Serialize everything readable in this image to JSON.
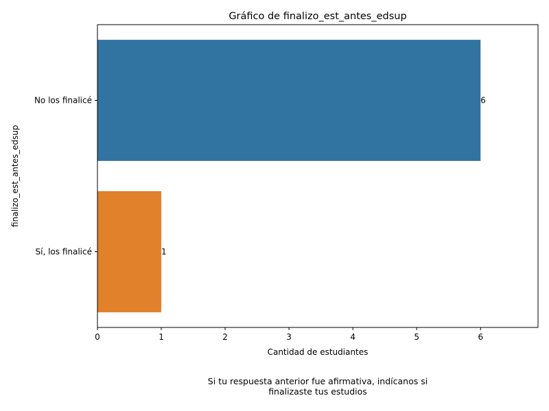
{
  "chart_data": {
    "type": "bar",
    "orientation": "horizontal",
    "title": "Gráfico de finalizo_est_antes_edsup",
    "xlabel": "Cantidad de estudiantes",
    "ylabel": "finalizo_est_antes_edsup",
    "categories": [
      "No los finalicé",
      "Sí, los finalicé"
    ],
    "values": [
      6,
      1
    ],
    "data_labels": [
      "6",
      "1"
    ],
    "colors": [
      "#3274a1",
      "#e1812c"
    ],
    "xlim": [
      0,
      6.9
    ],
    "xticks": [
      0,
      1,
      2,
      3,
      4,
      5,
      6
    ],
    "grid": false
  },
  "caption": {
    "line1": "Si tu respuesta anterior fue afirmativa, indícanos si",
    "line2": "finalizaste tus estudios"
  }
}
